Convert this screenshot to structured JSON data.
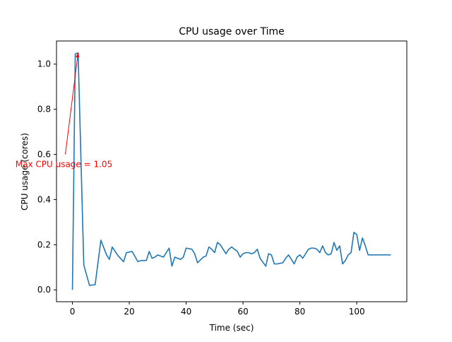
{
  "chart_data": {
    "type": "line",
    "title": "CPU usage over Time",
    "xlabel": "Time (sec)",
    "ylabel": "CPU usage (cores)",
    "xlim": [
      -5.6,
      117.6
    ],
    "ylim": [
      -0.0525,
      1.1025
    ],
    "xticks": [
      0,
      20,
      40,
      60,
      80,
      100
    ],
    "xtick_labels": [
      "0",
      "20",
      "40",
      "60",
      "80",
      "100"
    ],
    "yticks": [
      0.0,
      0.2,
      0.4,
      0.6,
      0.8,
      1.0
    ],
    "ytick_labels": [
      "0.0",
      "0.2",
      "0.4",
      "0.6",
      "0.8",
      "1.0"
    ],
    "grid": false,
    "line_color": "#1f77b4",
    "annotation": {
      "text": "Max CPU usage = 1.05",
      "color": "#ff0000",
      "point": [
        2,
        1.05
      ],
      "text_anchor_point": [
        -2.5,
        0.6
      ]
    },
    "series": [
      {
        "x": [
          0,
          1,
          2,
          4,
          6,
          8,
          10,
          12,
          13,
          14,
          16,
          18,
          19,
          21,
          23,
          24,
          25,
          26,
          27,
          28,
          29,
          30,
          32,
          34,
          35,
          36,
          38,
          39,
          40,
          42,
          43,
          44,
          46,
          47,
          48,
          49,
          50,
          51,
          52,
          54,
          55,
          56,
          58,
          59,
          60,
          61,
          62,
          63,
          64,
          65,
          66,
          68,
          69,
          70,
          71,
          72,
          74,
          75,
          76,
          78,
          79,
          80,
          81,
          83,
          84,
          85,
          86,
          87,
          88,
          89,
          90,
          91,
          92,
          93,
          94,
          95,
          96,
          97,
          98,
          99,
          100,
          101,
          102,
          103,
          104,
          106,
          107,
          108,
          110,
          112
        ],
        "y": [
          0.0,
          1.045,
          1.05,
          0.11,
          0.02,
          0.023,
          0.22,
          0.155,
          0.135,
          0.19,
          0.152,
          0.125,
          0.165,
          0.17,
          0.125,
          0.13,
          0.13,
          0.13,
          0.17,
          0.14,
          0.145,
          0.155,
          0.145,
          0.185,
          0.105,
          0.145,
          0.135,
          0.145,
          0.185,
          0.18,
          0.16,
          0.12,
          0.145,
          0.15,
          0.19,
          0.18,
          0.165,
          0.21,
          0.2,
          0.16,
          0.18,
          0.19,
          0.17,
          0.145,
          0.16,
          0.165,
          0.165,
          0.16,
          0.165,
          0.18,
          0.14,
          0.105,
          0.16,
          0.155,
          0.115,
          0.115,
          0.12,
          0.14,
          0.155,
          0.115,
          0.145,
          0.155,
          0.14,
          0.18,
          0.185,
          0.185,
          0.18,
          0.165,
          0.195,
          0.165,
          0.155,
          0.16,
          0.21,
          0.175,
          0.195,
          0.115,
          0.13,
          0.155,
          0.165,
          0.255,
          0.245,
          0.175,
          0.23,
          0.195,
          0.155,
          0.155,
          0.155,
          0.155,
          0.155,
          0.155
        ]
      }
    ]
  }
}
